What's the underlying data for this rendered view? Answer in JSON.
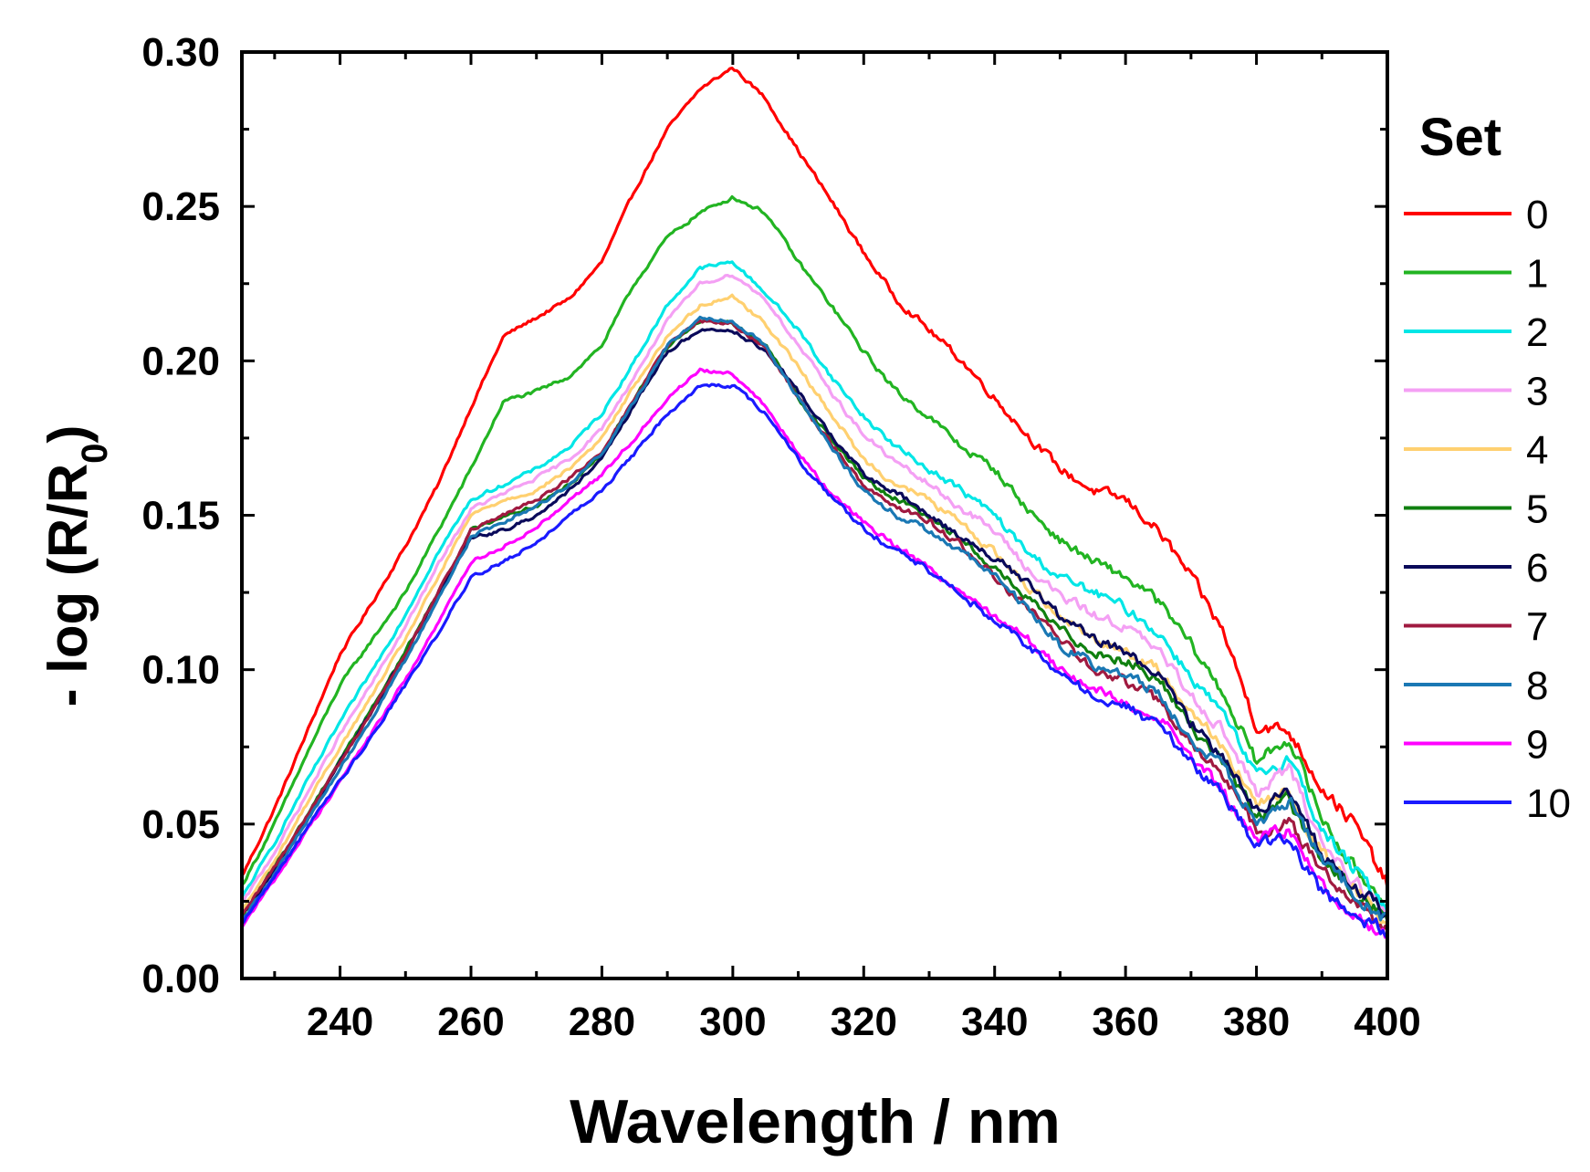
{
  "chart_data": {
    "type": "line",
    "title": "",
    "xlabel": "Wavelength / nm",
    "ylabel_main": "- log (R/R",
    "ylabel_sub": "0",
    "ylabel_close": ")",
    "xlim": [
      225,
      400
    ],
    "ylim": [
      0.0,
      0.3
    ],
    "xticks": [
      240,
      260,
      280,
      300,
      320,
      340,
      360,
      380,
      400
    ],
    "yticks": [
      0.0,
      0.05,
      0.1,
      0.15,
      0.2,
      0.25,
      0.3
    ],
    "xtick_labels": [
      "240",
      "260",
      "280",
      "300",
      "320",
      "340",
      "360",
      "380",
      "400"
    ],
    "ytick_labels": [
      "0.00",
      "0.05",
      "0.10",
      "0.15",
      "0.20",
      "0.25",
      "0.30"
    ],
    "grid": false,
    "legend": {
      "title": "Set",
      "position": "right"
    },
    "x": [
      225,
      230,
      235,
      240,
      245,
      250,
      255,
      260,
      265,
      270,
      275,
      280,
      285,
      290,
      295,
      300,
      305,
      310,
      315,
      320,
      325,
      330,
      335,
      340,
      345,
      350,
      355,
      360,
      365,
      370,
      375,
      380,
      385,
      390,
      395,
      400
    ],
    "series": [
      {
        "name": "0",
        "color": "#ff0000",
        "values": [
          0.033,
          0.055,
          0.08,
          0.105,
          0.122,
          0.14,
          0.16,
          0.185,
          0.208,
          0.214,
          0.22,
          0.232,
          0.255,
          0.275,
          0.288,
          0.295,
          0.285,
          0.268,
          0.252,
          0.235,
          0.22,
          0.21,
          0.2,
          0.188,
          0.176,
          0.165,
          0.158,
          0.155,
          0.145,
          0.13,
          0.112,
          0.082,
          0.08,
          0.062,
          0.05,
          0.03
        ]
      },
      {
        "name": "1",
        "color": "#22b422",
        "values": [
          0.03,
          0.05,
          0.073,
          0.095,
          0.11,
          0.125,
          0.145,
          0.165,
          0.187,
          0.19,
          0.195,
          0.205,
          0.225,
          0.24,
          0.248,
          0.253,
          0.248,
          0.232,
          0.218,
          0.203,
          0.19,
          0.182,
          0.172,
          0.165,
          0.152,
          0.142,
          0.135,
          0.13,
          0.122,
          0.108,
          0.092,
          0.07,
          0.078,
          0.052,
          0.035,
          0.025
        ]
      },
      {
        "name": "2",
        "color": "#00e6e6",
        "values": [
          0.026,
          0.044,
          0.064,
          0.083,
          0.1,
          0.118,
          0.138,
          0.155,
          0.16,
          0.165,
          0.172,
          0.183,
          0.2,
          0.218,
          0.23,
          0.232,
          0.222,
          0.21,
          0.195,
          0.182,
          0.172,
          0.165,
          0.158,
          0.15,
          0.138,
          0.13,
          0.125,
          0.12,
          0.112,
          0.098,
          0.085,
          0.065,
          0.072,
          0.048,
          0.035,
          0.022
        ]
      },
      {
        "name": "3",
        "color": "#f4a0f4",
        "values": [
          0.024,
          0.041,
          0.06,
          0.079,
          0.096,
          0.114,
          0.134,
          0.152,
          0.157,
          0.162,
          0.168,
          0.178,
          0.195,
          0.213,
          0.225,
          0.228,
          0.22,
          0.205,
          0.19,
          0.176,
          0.167,
          0.16,
          0.152,
          0.145,
          0.133,
          0.124,
          0.118,
          0.114,
          0.106,
          0.092,
          0.08,
          0.06,
          0.068,
          0.044,
          0.032,
          0.02
        ]
      },
      {
        "name": "4",
        "color": "#ffd070",
        "values": [
          0.022,
          0.038,
          0.057,
          0.075,
          0.092,
          0.11,
          0.13,
          0.15,
          0.155,
          0.158,
          0.165,
          0.175,
          0.192,
          0.208,
          0.218,
          0.221,
          0.212,
          0.198,
          0.183,
          0.168,
          0.16,
          0.155,
          0.147,
          0.138,
          0.127,
          0.118,
          0.11,
          0.106,
          0.1,
          0.087,
          0.075,
          0.056,
          0.06,
          0.04,
          0.03,
          0.018
        ]
      },
      {
        "name": "5",
        "color": "#108010",
        "values": [
          0.02,
          0.036,
          0.053,
          0.071,
          0.088,
          0.106,
          0.125,
          0.145,
          0.15,
          0.153,
          0.16,
          0.17,
          0.188,
          0.205,
          0.213,
          0.212,
          0.205,
          0.188,
          0.175,
          0.162,
          0.155,
          0.15,
          0.142,
          0.133,
          0.123,
          0.113,
          0.106,
          0.103,
          0.097,
          0.082,
          0.07,
          0.052,
          0.058,
          0.038,
          0.028,
          0.02
        ]
      },
      {
        "name": "6",
        "color": "#0a0a5a",
        "values": [
          0.02,
          0.035,
          0.052,
          0.07,
          0.087,
          0.105,
          0.124,
          0.143,
          0.145,
          0.15,
          0.158,
          0.168,
          0.186,
          0.203,
          0.21,
          0.21,
          0.203,
          0.19,
          0.176,
          0.163,
          0.157,
          0.15,
          0.143,
          0.136,
          0.128,
          0.117,
          0.11,
          0.106,
          0.098,
          0.083,
          0.072,
          0.055,
          0.06,
          0.04,
          0.03,
          0.02
        ]
      },
      {
        "name": "7",
        "color": "#a01a40",
        "values": [
          0.02,
          0.036,
          0.053,
          0.07,
          0.087,
          0.105,
          0.125,
          0.145,
          0.15,
          0.155,
          0.162,
          0.17,
          0.188,
          0.205,
          0.213,
          0.212,
          0.204,
          0.188,
          0.173,
          0.16,
          0.153,
          0.148,
          0.14,
          0.13,
          0.12,
          0.11,
          0.1,
          0.096,
          0.09,
          0.076,
          0.065,
          0.048,
          0.05,
          0.035,
          0.025,
          0.016
        ]
      },
      {
        "name": "8",
        "color": "#1a78b4",
        "values": [
          0.019,
          0.034,
          0.051,
          0.068,
          0.085,
          0.103,
          0.123,
          0.143,
          0.148,
          0.153,
          0.16,
          0.17,
          0.187,
          0.205,
          0.214,
          0.213,
          0.205,
          0.188,
          0.172,
          0.158,
          0.15,
          0.145,
          0.138,
          0.13,
          0.12,
          0.108,
          0.102,
          0.098,
          0.093,
          0.077,
          0.068,
          0.05,
          0.058,
          0.038,
          0.028,
          0.018
        ]
      },
      {
        "name": "9",
        "color": "#ff00ff",
        "values": [
          0.017,
          0.032,
          0.048,
          0.064,
          0.08,
          0.097,
          0.115,
          0.135,
          0.14,
          0.146,
          0.155,
          0.163,
          0.175,
          0.188,
          0.197,
          0.196,
          0.185,
          0.17,
          0.157,
          0.148,
          0.14,
          0.133,
          0.125,
          0.118,
          0.11,
          0.1,
          0.094,
          0.089,
          0.085,
          0.072,
          0.06,
          0.045,
          0.048,
          0.03,
          0.02,
          0.014
        ]
      },
      {
        "name": "10",
        "color": "#1a1aff",
        "values": [
          0.018,
          0.033,
          0.049,
          0.064,
          0.079,
          0.095,
          0.112,
          0.13,
          0.135,
          0.141,
          0.15,
          0.158,
          0.17,
          0.183,
          0.192,
          0.192,
          0.183,
          0.168,
          0.156,
          0.146,
          0.138,
          0.132,
          0.124,
          0.116,
          0.108,
          0.098,
          0.092,
          0.088,
          0.082,
          0.07,
          0.06,
          0.043,
          0.045,
          0.028,
          0.02,
          0.015
        ]
      }
    ]
  }
}
